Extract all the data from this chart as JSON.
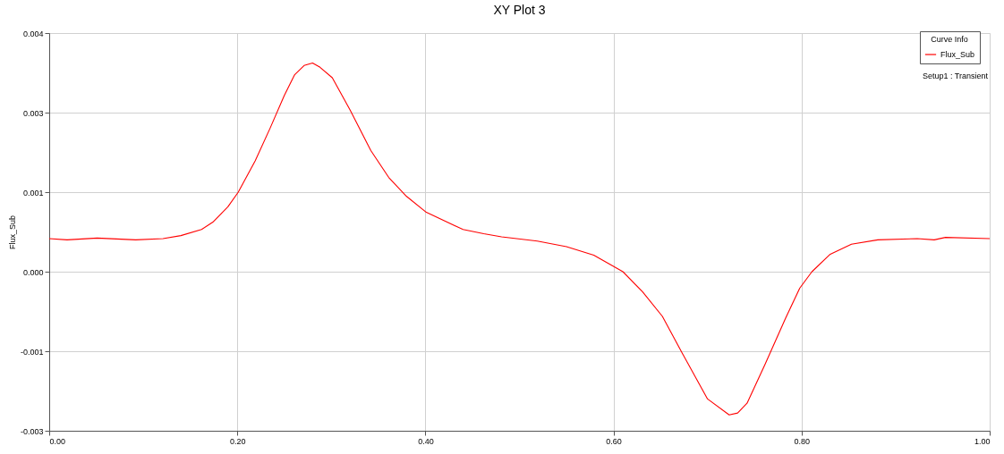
{
  "chart_data": {
    "type": "line",
    "title": "XY Plot 3",
    "ylabel": "Flux_Sub",
    "legend_title": "Curve Info",
    "annotations": [
      "Setup1 : Transient"
    ],
    "xlim": [
      0,
      1
    ],
    "xticks": [
      {
        "value": 0,
        "label": "0.00"
      },
      {
        "value": 0.2,
        "label": "0.20"
      },
      {
        "value": 0.4,
        "label": "0.40"
      },
      {
        "value": 0.6,
        "label": "0.60"
      },
      {
        "value": 0.8,
        "label": "0.80"
      },
      {
        "value": 1,
        "label": "1.00"
      }
    ],
    "ylim": [
      -0.0026,
      0.0039
    ],
    "yticks": [
      {
        "value": 0.0039,
        "label": "0.004"
      },
      {
        "value": 0.0026,
        "label": "0.003"
      },
      {
        "value": 0.0013,
        "label": "0.001"
      },
      {
        "value": 0.0,
        "label": "0.000"
      },
      {
        "value": -0.0013,
        "label": "-0.001"
      },
      {
        "value": -0.0026,
        "label": "-0.003"
      }
    ],
    "grid": true,
    "legend": "top right",
    "marker": "none",
    "line_style": "solid",
    "series": [
      {
        "name": "Flux_Sub",
        "color": "#ff0000",
        "x": [
          0.0,
          0.019,
          0.051,
          0.092,
          0.121,
          0.14,
          0.162,
          0.174,
          0.19,
          0.201,
          0.219,
          0.235,
          0.25,
          0.261,
          0.271,
          0.28,
          0.288,
          0.301,
          0.32,
          0.342,
          0.361,
          0.38,
          0.401,
          0.44,
          0.462,
          0.481,
          0.519,
          0.55,
          0.579,
          0.61,
          0.631,
          0.652,
          0.673,
          0.7,
          0.723,
          0.732,
          0.742,
          0.761,
          0.783,
          0.798,
          0.811,
          0.83,
          0.853,
          0.881,
          0.923,
          0.941,
          0.953,
          1.0
        ],
        "values": [
          0.00054,
          0.00052,
          0.00055,
          0.00052,
          0.00054,
          0.00059,
          0.00069,
          0.00081,
          0.00106,
          0.0013,
          0.00181,
          0.00235,
          0.00288,
          0.00322,
          0.00337,
          0.00341,
          0.00334,
          0.00317,
          0.00264,
          0.00198,
          0.00154,
          0.00123,
          0.00097,
          0.00069,
          0.00062,
          0.00057,
          0.0005,
          0.00041,
          0.00027,
          0.0,
          -0.00033,
          -0.00073,
          -0.00133,
          -0.00208,
          -0.00234,
          -0.00231,
          -0.00215,
          -0.00152,
          -0.00076,
          -0.00027,
          0.0,
          0.00028,
          0.00045,
          0.00052,
          0.00054,
          0.00052,
          0.00056,
          0.00054
        ]
      }
    ]
  }
}
